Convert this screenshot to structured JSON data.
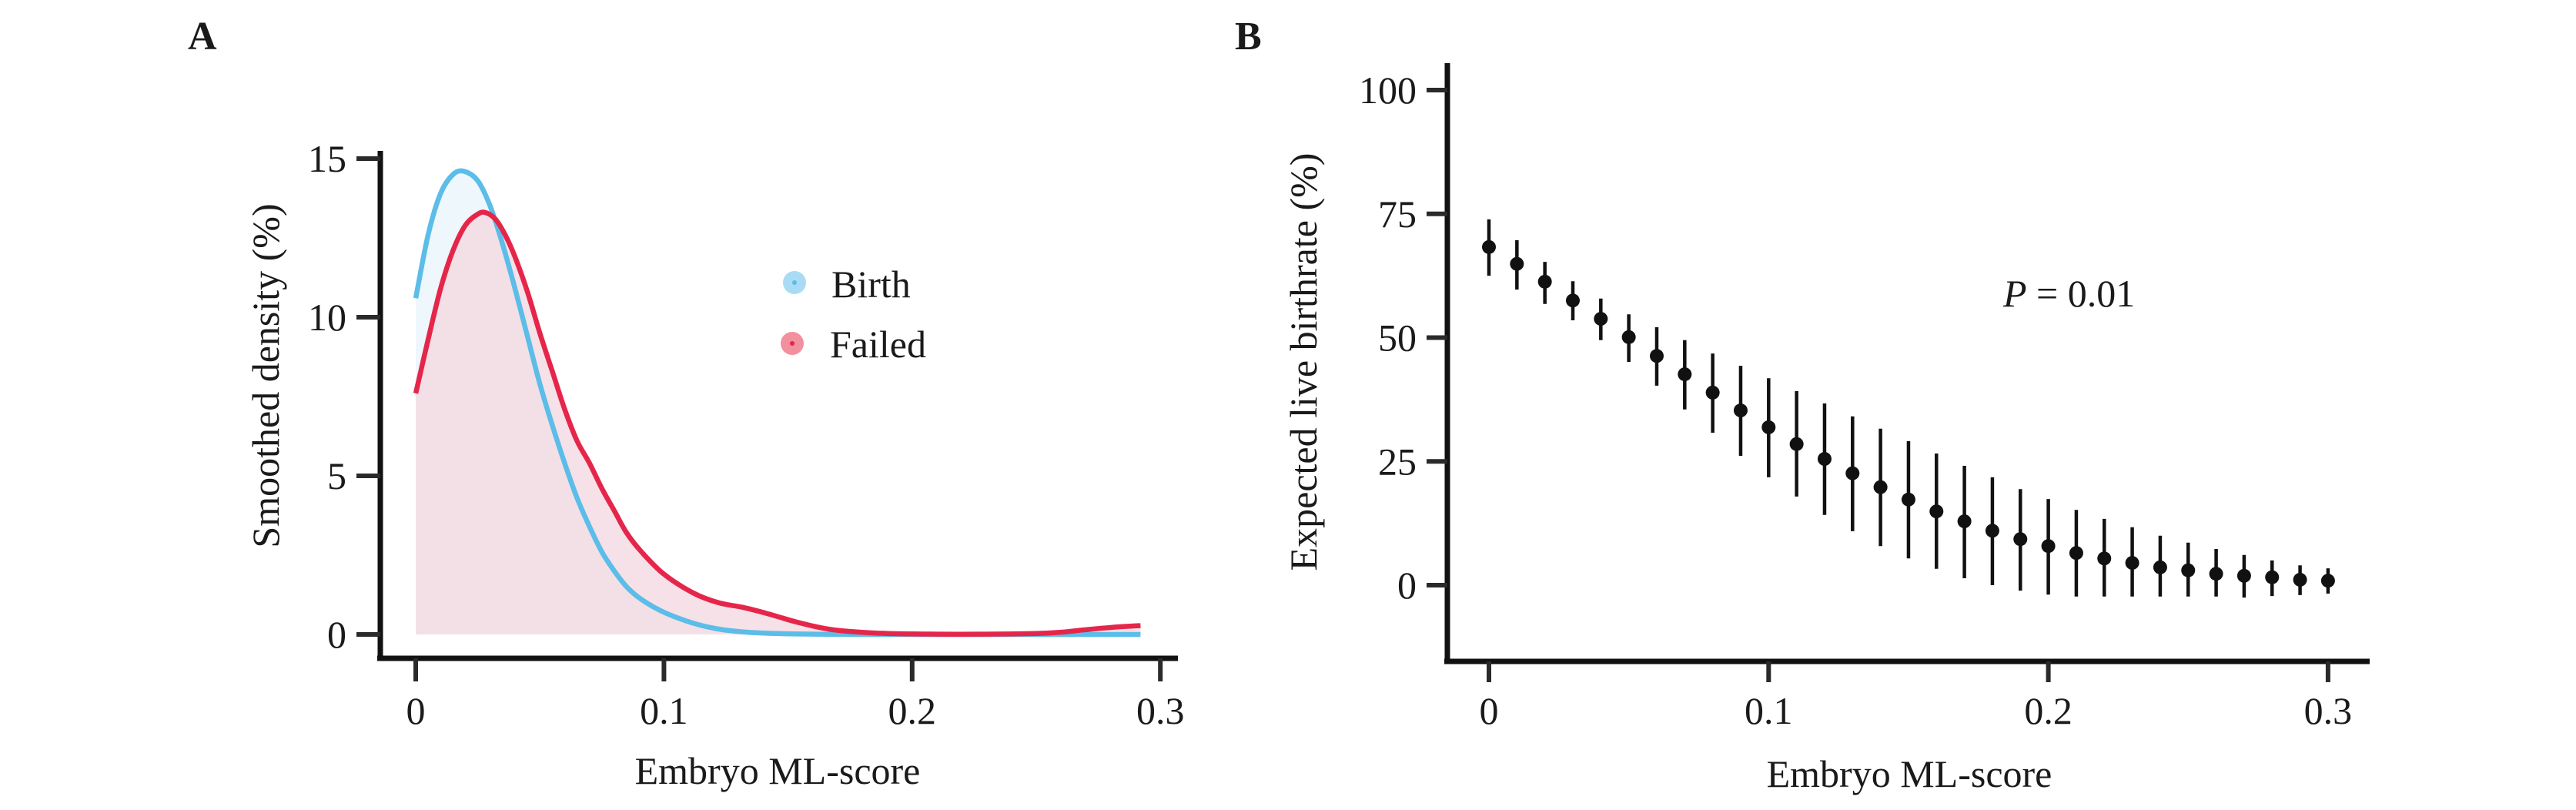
{
  "figure": {
    "panels": [
      {
        "label": "A"
      },
      {
        "label": "B"
      }
    ]
  },
  "chart_data": [
    {
      "panel": "A",
      "type": "area",
      "title": "",
      "xlabel": "Embryo ML-score",
      "ylabel": "Smoothed density (%)",
      "xlim": [
        0,
        0.3
      ],
      "ylim": [
        0,
        15
      ],
      "xticks": [
        0,
        0.1,
        0.2,
        0.3
      ],
      "xtick_labels": [
        "0",
        "0.1",
        "0.2",
        "0.3"
      ],
      "yticks": [
        0,
        5,
        10,
        15
      ],
      "ytick_labels": [
        "0",
        "5",
        "10",
        "15"
      ],
      "grid": false,
      "legend": {
        "placement": "upper-right-center",
        "entries": [
          "Birth",
          "Failed"
        ]
      },
      "series": [
        {
          "name": "Birth",
          "color": "#5bbde8",
          "fill": "#eef7fc",
          "x": [
            0,
            0.005,
            0.01,
            0.015,
            0.0195,
            0.025,
            0.03,
            0.035,
            0.04,
            0.045,
            0.05,
            0.055,
            0.06,
            0.065,
            0.07,
            0.075,
            0.08,
            0.085,
            0.091,
            0.1,
            0.112,
            0.122,
            0.132,
            0.145,
            0.16,
            0.18,
            0.2,
            0.22,
            0.24,
            0.26,
            0.28,
            0.292
          ],
          "y": [
            10.6,
            12.6,
            13.9,
            14.5,
            14.6,
            14.3,
            13.5,
            12.3,
            10.9,
            9.4,
            7.9,
            6.6,
            5.4,
            4.3,
            3.4,
            2.6,
            2.0,
            1.5,
            1.1,
            0.7,
            0.35,
            0.17,
            0.08,
            0.03,
            0.01,
            0.0,
            0.0,
            0.0,
            0.0,
            0.0,
            0.0,
            0.0
          ]
        },
        {
          "name": "Failed",
          "color": "#e5264a",
          "fill": "#f3dce3",
          "x": [
            0,
            0.005,
            0.01,
            0.015,
            0.02,
            0.025,
            0.028,
            0.032,
            0.036,
            0.04,
            0.045,
            0.05,
            0.055,
            0.06,
            0.065,
            0.07,
            0.075,
            0.08,
            0.085,
            0.091,
            0.1,
            0.112,
            0.122,
            0.132,
            0.142,
            0.153,
            0.164,
            0.174,
            0.19,
            0.21,
            0.23,
            0.25,
            0.26,
            0.27,
            0.28,
            0.292
          ],
          "y": [
            7.6,
            9.3,
            10.9,
            12.1,
            12.9,
            13.25,
            13.3,
            13.1,
            12.6,
            11.9,
            10.8,
            9.5,
            8.3,
            7.1,
            6.1,
            5.4,
            4.6,
            3.9,
            3.2,
            2.6,
            1.9,
            1.3,
            1.0,
            0.85,
            0.65,
            0.4,
            0.2,
            0.1,
            0.03,
            0.01,
            0.01,
            0.03,
            0.07,
            0.15,
            0.22,
            0.28
          ]
        }
      ]
    },
    {
      "panel": "B",
      "type": "scatter",
      "title": "",
      "xlabel": "Embryo ML-score",
      "ylabel": "Expected live birthrate (%)",
      "xlim": [
        -0.01,
        0.315
      ],
      "ylim": [
        -12,
        105
      ],
      "xticks": [
        0,
        0.1,
        0.2,
        0.3
      ],
      "xtick_labels": [
        "0",
        "0.1",
        "0.2",
        "0.3"
      ],
      "yticks": [
        0,
        25,
        50,
        75,
        100
      ],
      "ytick_labels": [
        "0",
        "25",
        "50",
        "75",
        "100"
      ],
      "grid": false,
      "annotation": {
        "italic_part": "P",
        "text": " = 0.01"
      },
      "series": [
        {
          "name": "Expected live birthrate",
          "color": "#111111",
          "x": [
            0,
            0.01,
            0.02,
            0.03,
            0.04,
            0.05,
            0.06,
            0.07,
            0.08,
            0.09,
            0.1,
            0.11,
            0.12,
            0.13,
            0.14,
            0.15,
            0.16,
            0.17,
            0.18,
            0.19,
            0.2,
            0.21,
            0.22,
            0.23,
            0.24,
            0.25,
            0.26,
            0.27,
            0.28,
            0.29,
            0.3
          ],
          "y": [
            68.3,
            64.9,
            61.3,
            57.5,
            53.8,
            50.1,
            46.3,
            42.6,
            38.9,
            35.3,
            31.9,
            28.5,
            25.5,
            22.6,
            19.8,
            17.3,
            14.9,
            12.9,
            11.0,
            9.3,
            7.9,
            6.5,
            5.4,
            4.5,
            3.6,
            3.0,
            2.3,
            1.9,
            1.6,
            1.1,
            0.9
          ],
          "lower": [
            62.5,
            59.7,
            56.8,
            53.5,
            49.5,
            45.1,
            40.3,
            35.5,
            30.8,
            26.1,
            21.8,
            17.9,
            14.2,
            10.9,
            7.9,
            5.4,
            3.3,
            1.4,
            0.0,
            -1.1,
            -1.9,
            -2.3,
            -2.3,
            -2.3,
            -2.3,
            -2.3,
            -2.3,
            -2.5,
            -2.2,
            -2.0,
            -1.7
          ],
          "upper": [
            73.9,
            69.7,
            65.3,
            61.4,
            57.9,
            54.7,
            52.1,
            49.5,
            46.8,
            44.3,
            41.8,
            39.2,
            36.7,
            34.1,
            31.6,
            29.1,
            26.6,
            24.1,
            21.8,
            19.4,
            17.4,
            15.2,
            13.4,
            11.7,
            10.0,
            8.6,
            7.3,
            6.1,
            5.0,
            4.0,
            3.4
          ]
        }
      ]
    }
  ]
}
